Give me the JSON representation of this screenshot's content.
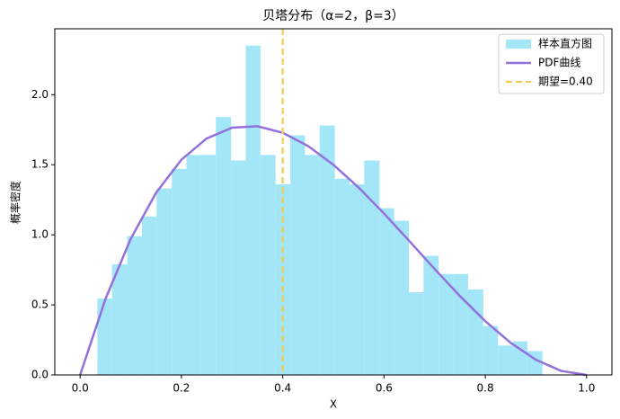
{
  "chart_data": {
    "type": "histogram",
    "title": "贝塔分布（α=2，β=3）",
    "xlabel": "X",
    "ylabel": "概率密度",
    "name": "样本直方图",
    "color": "#a3e6f8",
    "bins": [
      0.034,
      0.063,
      0.093,
      0.122,
      0.151,
      0.181,
      0.21,
      0.239,
      0.268,
      0.298,
      0.327,
      0.356,
      0.386,
      0.415,
      0.444,
      0.473,
      0.503,
      0.532,
      0.561,
      0.591,
      0.62,
      0.649,
      0.678,
      0.708,
      0.737,
      0.766,
      0.796,
      0.825,
      0.854,
      0.883,
      0.913
    ],
    "values": [
      0.545,
      0.79,
      0.99,
      1.13,
      1.33,
      1.47,
      1.57,
      1.57,
      1.84,
      1.53,
      2.35,
      1.57,
      1.36,
      1.71,
      1.57,
      1.78,
      1.4,
      1.36,
      1.53,
      1.19,
      1.1,
      0.59,
      0.85,
      0.72,
      0.72,
      0.61,
      0.35,
      0.21,
      0.24,
      0.17
    ],
    "curve": {
      "name": "PDF曲线",
      "color": "#9370db",
      "x": [
        0,
        0.05,
        0.1,
        0.15,
        0.2,
        0.25,
        0.3,
        0.35,
        0.4,
        0.45,
        0.5,
        0.55,
        0.6,
        0.65,
        0.7,
        0.75,
        0.8,
        0.85,
        0.9,
        0.95,
        1
      ],
      "values": [
        0,
        0.5415,
        0.972,
        1.3005,
        1.536,
        1.6875,
        1.764,
        1.7745,
        1.728,
        1.6335,
        1.5,
        1.3365,
        1.152,
        0.9555,
        0.756,
        0.5625,
        0.384,
        0.2295,
        0.108,
        0.0285,
        0
      ]
    },
    "vline": {
      "name": "期望=0.40",
      "color": "#f4cc55",
      "value": 0.4
    },
    "xlim": [
      -0.05,
      1.05
    ],
    "ylim": [
      0,
      2.47
    ],
    "xticks": [
      {
        "value": 0,
        "label": "0.0"
      },
      0.2,
      0.4,
      0.6,
      0.8,
      {
        "value": 1,
        "label": "1.0"
      }
    ],
    "yticks": [
      {
        "value": 0,
        "label": "0.0"
      },
      0.5,
      {
        "value": 1,
        "label": "1.0"
      },
      1.5,
      {
        "value": 2,
        "label": "2.0"
      }
    ],
    "legend": "upper right"
  }
}
